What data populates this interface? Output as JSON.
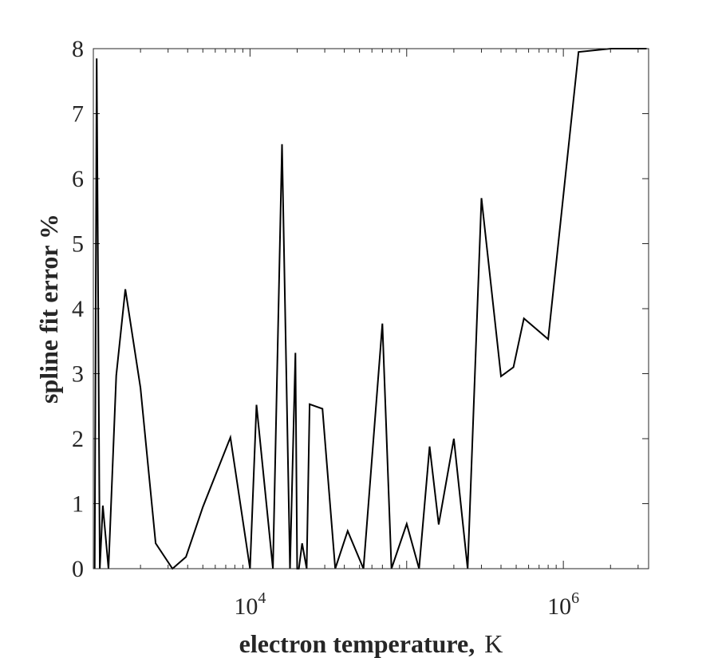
{
  "chart_data": {
    "type": "line",
    "xlabel": "electron temperature,",
    "xlabel_unit": "K",
    "ylabel": "spline fit error %",
    "xscale": "log",
    "xlim": [
      1000,
      3500000
    ],
    "ylim": [
      0,
      8
    ],
    "grid": false,
    "box": true,
    "x_ticks": [
      {
        "value": 10000,
        "base": "10",
        "exp": "4"
      },
      {
        "value": 1000000,
        "base": "10",
        "exp": "6"
      }
    ],
    "y_ticks": [
      "0",
      "1",
      "2",
      "3",
      "4",
      "5",
      "6",
      "7",
      "8"
    ],
    "series": [
      {
        "color": "#000000",
        "x": [
          1020,
          1050,
          1100,
          1150,
          1250,
          1400,
          1600,
          2000,
          2500,
          3200,
          3900,
          5000,
          7500,
          10000,
          11000,
          14000,
          16000,
          18000,
          19500,
          20000,
          20500,
          21500,
          23000,
          24000,
          29000,
          35000,
          42000,
          53000,
          70000,
          80000,
          100000,
          120000,
          140000,
          160000,
          200000,
          245000,
          300000,
          400000,
          480000,
          560000,
          800000,
          1250000,
          2000000,
          3150000,
          3400000
        ],
        "y": [
          0,
          7.85,
          0,
          0.97,
          0,
          2.97,
          4.3,
          2.78,
          0.39,
          0,
          0.18,
          0.95,
          2.02,
          0,
          2.52,
          0,
          6.53,
          0,
          3.32,
          0,
          0,
          0.39,
          0,
          2.53,
          2.46,
          0,
          0.58,
          0,
          3.77,
          0,
          0.69,
          0,
          1.88,
          0.68,
          2.0,
          0,
          5.7,
          2.96,
          3.1,
          3.85,
          3.53,
          7.95,
          8.0,
          8.0,
          8.0
        ]
      }
    ]
  }
}
